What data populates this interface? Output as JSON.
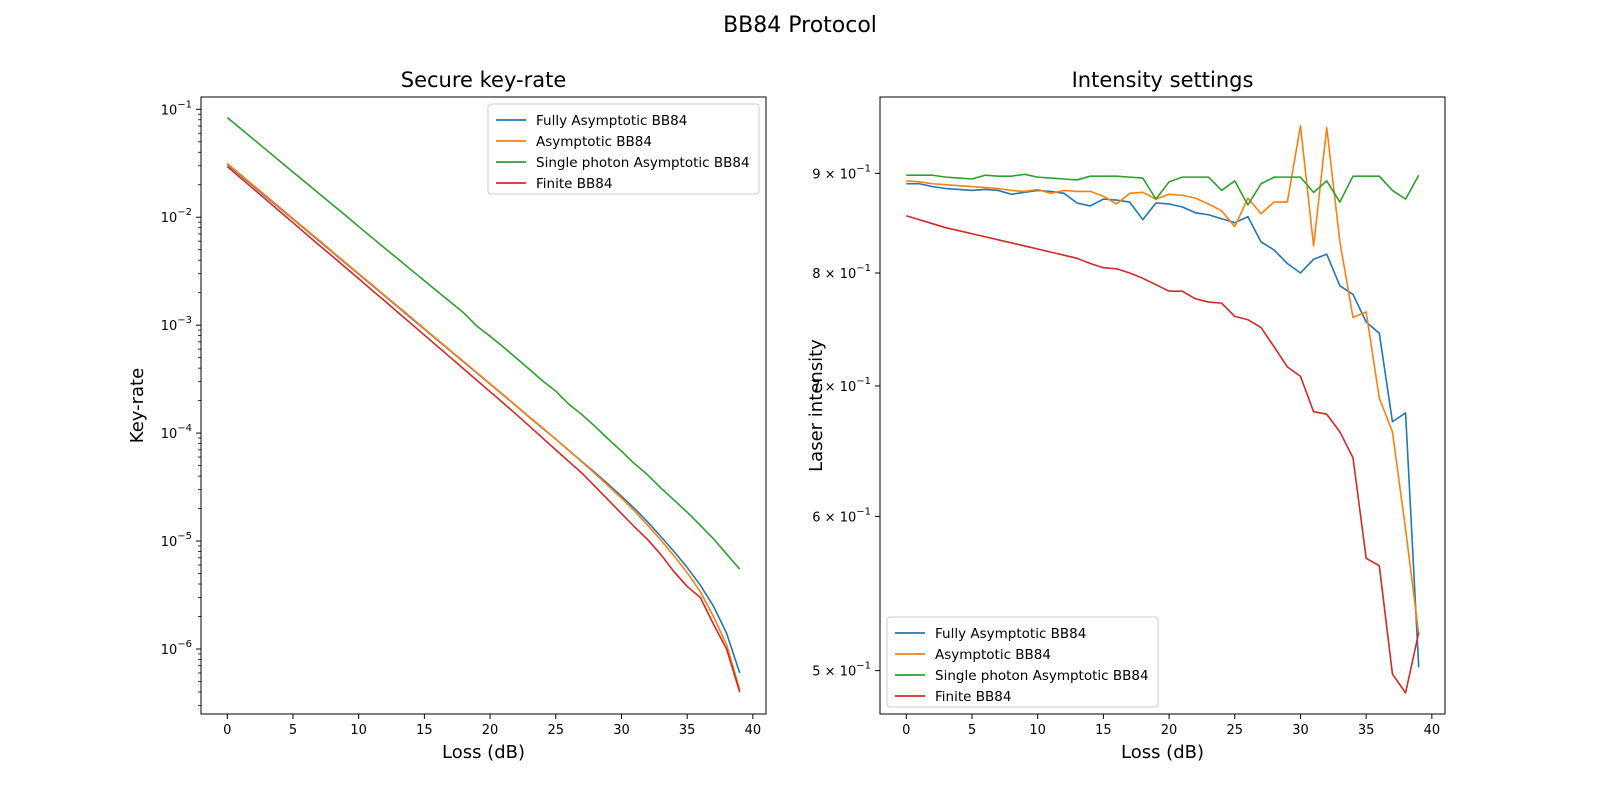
{
  "figure_title": "BB84 Protocol",
  "colors": {
    "Fully Asymptotic BB84": "#1f77b4",
    "Asymptotic BB84": "#ff7f0e",
    "Single photon Asymptotic BB84": "#2ca02c",
    "Finite BB84": "#d62728"
  },
  "chart_data": [
    {
      "type": "line",
      "title": "Secure key-rate",
      "xlabel": "Loss (dB)",
      "ylabel": "Key-rate",
      "yscale": "log",
      "xlim": [
        -2,
        41
      ],
      "ylim": [
        2.5e-07,
        0.13
      ],
      "xticks": [
        0,
        5,
        10,
        15,
        20,
        25,
        30,
        35,
        40
      ],
      "yticks": [
        {
          "value": 1e-06,
          "base": "10",
          "exp": "−6"
        },
        {
          "value": 1e-05,
          "base": "10",
          "exp": "−5"
        },
        {
          "value": 0.0001,
          "base": "10",
          "exp": "−4"
        },
        {
          "value": 0.001,
          "base": "10",
          "exp": "−3"
        },
        {
          "value": 0.01,
          "base": "10",
          "exp": "−2"
        },
        {
          "value": 0.1,
          "base": "10",
          "exp": "−1"
        }
      ],
      "legend_position": "top-right",
      "x": [
        0,
        1,
        2,
        3,
        4,
        5,
        6,
        7,
        8,
        9,
        10,
        11,
        12,
        13,
        14,
        15,
        16,
        17,
        18,
        19,
        20,
        21,
        22,
        23,
        24,
        25,
        26,
        27,
        28,
        29,
        30,
        31,
        32,
        33,
        34,
        35,
        36,
        37,
        38,
        39
      ],
      "series": [
        {
          "name": "Fully Asymptotic BB84",
          "values": [
            0.031,
            0.0245,
            0.0194,
            0.0153,
            0.0121,
            0.0096,
            0.0076,
            0.006,
            0.00475,
            0.00375,
            0.00297,
            0.00235,
            0.00186,
            0.00147,
            0.00116,
            0.00092,
            0.000727,
            0.000575,
            0.000455,
            0.00036,
            0.000285,
            0.000225,
            0.000178,
            0.00014,
            0.000111,
            8.8e-05,
            6.9e-05,
            5.45e-05,
            4.3e-05,
            3.35e-05,
            2.6e-05,
            2e-05,
            1.5e-05,
            1.1e-05,
            8e-06,
            5.7e-06,
            3.9e-06,
            2.5e-06,
            1.4e-06,
            6e-07
          ]
        },
        {
          "name": "Asymptotic BB84",
          "values": [
            0.0315,
            0.0249,
            0.0197,
            0.0156,
            0.0123,
            0.0097,
            0.0077,
            0.0061,
            0.0048,
            0.0038,
            0.003,
            0.00238,
            0.00188,
            0.00149,
            0.00118,
            0.00093,
            0.000735,
            0.00058,
            0.00046,
            0.000363,
            0.000287,
            0.000227,
            0.000179,
            0.000141,
            0.000112,
            8.8e-05,
            6.9e-05,
            5.4e-05,
            4.2e-05,
            3.25e-05,
            2.5e-05,
            1.9e-05,
            1.4e-05,
            1.02e-05,
            7.3e-06,
            5.1e-06,
            3.4e-06,
            2e-06,
            1.1e-06,
            4.2e-07
          ]
        },
        {
          "name": "Single photon Asymptotic BB84",
          "values": [
            0.084,
            0.0665,
            0.0527,
            0.0418,
            0.0331,
            0.0262,
            0.0208,
            0.0165,
            0.0131,
            0.0104,
            0.0082,
            0.0065,
            0.00515,
            0.0041,
            0.00325,
            0.00258,
            0.00205,
            0.00163,
            0.0013,
            0.00098,
            0.00079,
            0.00063,
            0.000495,
            0.00039,
            0.000305,
            0.000245,
            0.000185,
            0.000148,
            0.000115,
            8.8e-05,
            6.8e-05,
            5.2e-05,
            4.1e-05,
            3.1e-05,
            2.4e-05,
            1.85e-05,
            1.4e-05,
            1.05e-05,
            7.6e-06,
            5.5e-06
          ]
        },
        {
          "name": "Finite BB84",
          "values": [
            0.0295,
            0.0232,
            0.0183,
            0.0144,
            0.0113,
            0.0089,
            0.007,
            0.0055,
            0.00435,
            0.00342,
            0.0027,
            0.00212,
            0.00167,
            0.00131,
            0.00103,
            0.00081,
            0.000636,
            0.0005,
            0.000393,
            0.000308,
            0.000242,
            0.00019,
            0.000149,
            0.000116,
            9e-05,
            7e-05,
            5.45e-05,
            4.25e-05,
            3.2e-05,
            2.4e-05,
            1.8e-05,
            1.35e-05,
            1.03e-05,
            7.5e-06,
            5.2e-06,
            3.8e-06,
            3e-06,
            1.7e-06,
            1e-06,
            4e-07
          ]
        }
      ]
    },
    {
      "type": "line",
      "title": "Intensity settings",
      "xlabel": "Loss (dB)",
      "ylabel": "Laser intensity",
      "yscale": "log",
      "xlim": [
        -2,
        41
      ],
      "ylim": [
        0.475,
        0.985
      ],
      "xticks": [
        0,
        5,
        10,
        15,
        20,
        25,
        30,
        35,
        40
      ],
      "yticks": [
        {
          "value": 0.5,
          "base": "5 × 10",
          "exp": "−1"
        },
        {
          "value": 0.6,
          "base": "6 × 10",
          "exp": "−1"
        },
        {
          "value": 0.7,
          "base": "7 × 10",
          "exp": "−1"
        },
        {
          "value": 0.8,
          "base": "8 × 10",
          "exp": "−1"
        },
        {
          "value": 0.9,
          "base": "9 × 10",
          "exp": "−1"
        }
      ],
      "legend_position": "bottom-left",
      "x": [
        0,
        1,
        2,
        3,
        4,
        5,
        6,
        7,
        8,
        9,
        10,
        11,
        12,
        13,
        14,
        15,
        16,
        17,
        18,
        19,
        20,
        21,
        22,
        23,
        24,
        25,
        26,
        27,
        28,
        29,
        30,
        31,
        32,
        33,
        34,
        35,
        36,
        37,
        38,
        39
      ],
      "series": [
        {
          "name": "Fully Asymptotic BB84",
          "values": [
            0.889,
            0.889,
            0.886,
            0.884,
            0.883,
            0.882,
            0.883,
            0.882,
            0.878,
            0.88,
            0.882,
            0.881,
            0.879,
            0.869,
            0.866,
            0.873,
            0.872,
            0.87,
            0.852,
            0.869,
            0.868,
            0.865,
            0.859,
            0.857,
            0.853,
            0.849,
            0.855,
            0.83,
            0.822,
            0.809,
            0.8,
            0.813,
            0.818,
            0.788,
            0.78,
            0.755,
            0.745,
            0.671,
            0.678,
            0.502
          ]
        },
        {
          "name": "Asymptotic BB84",
          "values": [
            0.892,
            0.891,
            0.889,
            0.888,
            0.887,
            0.886,
            0.885,
            0.884,
            0.882,
            0.881,
            0.883,
            0.879,
            0.882,
            0.881,
            0.881,
            0.876,
            0.868,
            0.879,
            0.88,
            0.873,
            0.878,
            0.877,
            0.874,
            0.868,
            0.861,
            0.845,
            0.874,
            0.858,
            0.87,
            0.87,
            0.952,
            0.826,
            0.95,
            0.83,
            0.759,
            0.764,
            0.69,
            0.663,
            0.591,
            0.522
          ]
        },
        {
          "name": "Single photon Asymptotic BB84",
          "values": [
            0.898,
            0.898,
            0.898,
            0.896,
            0.895,
            0.894,
            0.898,
            0.897,
            0.897,
            0.899,
            0.896,
            0.895,
            0.894,
            0.893,
            0.897,
            0.897,
            0.897,
            0.896,
            0.895,
            0.873,
            0.891,
            0.896,
            0.896,
            0.896,
            0.882,
            0.892,
            0.867,
            0.889,
            0.896,
            0.896,
            0.896,
            0.88,
            0.892,
            0.87,
            0.897,
            0.897,
            0.897,
            0.882,
            0.873,
            0.898
          ]
        },
        {
          "name": "Finite BB84",
          "values": [
            0.856,
            0.852,
            0.848,
            0.844,
            0.841,
            0.838,
            0.835,
            0.832,
            0.829,
            0.826,
            0.823,
            0.82,
            0.817,
            0.814,
            0.809,
            0.805,
            0.804,
            0.8,
            0.795,
            0.789,
            0.783,
            0.783,
            0.776,
            0.773,
            0.772,
            0.76,
            0.757,
            0.75,
            0.733,
            0.716,
            0.708,
            0.679,
            0.677,
            0.663,
            0.643,
            0.571,
            0.566,
            0.498,
            0.487,
            0.523
          ]
        }
      ]
    }
  ]
}
